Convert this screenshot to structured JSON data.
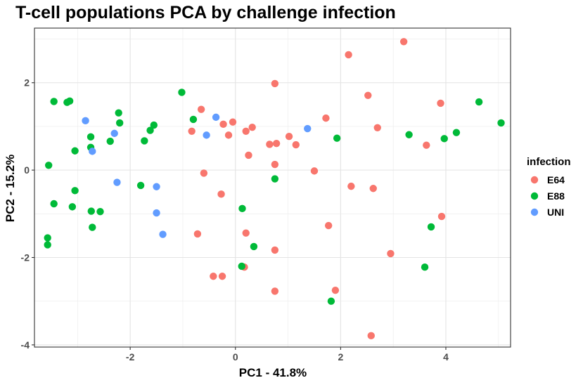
{
  "chart_data": {
    "type": "scatter",
    "title": "T-cell populations PCA by challenge infection",
    "xlabel": "PC1 - 41.8%",
    "ylabel": "PC2 - 15.2%",
    "xlim": [
      -3.82,
      5.23
    ],
    "ylim": [
      -4.05,
      3.25
    ],
    "x_ticks": [
      -2,
      0,
      2,
      4
    ],
    "y_ticks": [
      -4,
      -2,
      0,
      2
    ],
    "grid": true,
    "legend": {
      "title": "infection",
      "position": "right"
    },
    "series": [
      {
        "name": "E64",
        "color": "#F8766D",
        "points": [
          [
            0.75,
            1.98
          ],
          [
            2.15,
            2.64
          ],
          [
            3.2,
            2.94
          ],
          [
            2.52,
            1.71
          ],
          [
            3.9,
            1.53
          ],
          [
            -0.65,
            1.39
          ],
          [
            -0.05,
            1.1
          ],
          [
            -0.83,
            0.89
          ],
          [
            -0.23,
            1.05
          ],
          [
            0.2,
            0.89
          ],
          [
            0.32,
            0.98
          ],
          [
            -0.13,
            0.8
          ],
          [
            1.72,
            1.19
          ],
          [
            2.7,
            0.97
          ],
          [
            1.02,
            0.77
          ],
          [
            0.65,
            0.59
          ],
          [
            0.78,
            0.61
          ],
          [
            1.15,
            0.58
          ],
          [
            3.63,
            0.57
          ],
          [
            0.25,
            0.34
          ],
          [
            0.75,
            0.13
          ],
          [
            1.5,
            -0.02
          ],
          [
            -0.6,
            -0.07
          ],
          [
            2.2,
            -0.37
          ],
          [
            2.62,
            -0.42
          ],
          [
            -0.27,
            -0.55
          ],
          [
            3.92,
            -1.06
          ],
          [
            1.77,
            -1.27
          ],
          [
            -0.72,
            -1.46
          ],
          [
            0.2,
            -1.44
          ],
          [
            0.75,
            -1.83
          ],
          [
            2.95,
            -1.91
          ],
          [
            0.17,
            -2.22
          ],
          [
            -0.42,
            -2.43
          ],
          [
            -0.25,
            -2.43
          ],
          [
            0.75,
            -2.77
          ],
          [
            1.9,
            -2.75
          ],
          [
            2.58,
            -3.79
          ]
        ]
      },
      {
        "name": "E88",
        "color": "#00BA38",
        "points": [
          [
            -3.45,
            1.57
          ],
          [
            -3.2,
            1.55
          ],
          [
            -3.15,
            1.58
          ],
          [
            -1.02,
            1.78
          ],
          [
            4.63,
            1.56
          ],
          [
            -2.22,
            1.31
          ],
          [
            -0.8,
            1.16
          ],
          [
            -2.2,
            1.08
          ],
          [
            -1.55,
            1.03
          ],
          [
            -1.62,
            0.91
          ],
          [
            3.3,
            0.81
          ],
          [
            4.2,
            0.86
          ],
          [
            5.05,
            1.08
          ],
          [
            -2.75,
            0.76
          ],
          [
            -2.38,
            0.66
          ],
          [
            -1.73,
            0.67
          ],
          [
            -2.75,
            0.52
          ],
          [
            -3.05,
            0.44
          ],
          [
            1.93,
            0.73
          ],
          [
            3.97,
            0.72
          ],
          [
            -3.55,
            0.11
          ],
          [
            0.75,
            -0.2
          ],
          [
            -1.8,
            -0.35
          ],
          [
            -3.05,
            -0.47
          ],
          [
            -3.45,
            -0.77
          ],
          [
            -3.1,
            -0.84
          ],
          [
            -2.74,
            -0.94
          ],
          [
            -2.57,
            -0.95
          ],
          [
            0.13,
            -0.88
          ],
          [
            -2.72,
            -1.31
          ],
          [
            3.72,
            -1.3
          ],
          [
            -3.57,
            -1.55
          ],
          [
            -3.57,
            -1.71
          ],
          [
            0.35,
            -1.75
          ],
          [
            3.6,
            -2.22
          ],
          [
            0.12,
            -2.2
          ],
          [
            1.82,
            -3.0
          ]
        ]
      },
      {
        "name": "UNI",
        "color": "#619CFF",
        "points": [
          [
            -2.85,
            1.13
          ],
          [
            -0.37,
            1.21
          ],
          [
            -2.3,
            0.84
          ],
          [
            -0.55,
            0.8
          ],
          [
            1.37,
            0.95
          ],
          [
            -2.72,
            0.43
          ],
          [
            -2.25,
            -0.28
          ],
          [
            -1.5,
            -0.38
          ],
          [
            -1.5,
            -0.98
          ],
          [
            -1.38,
            -1.47
          ]
        ]
      }
    ]
  }
}
